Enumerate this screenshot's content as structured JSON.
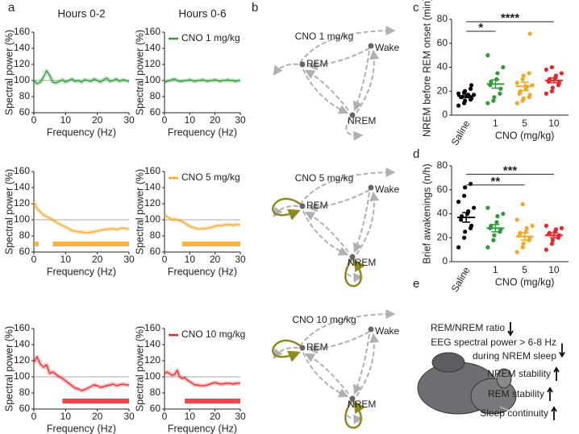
{
  "panel_labels": [
    "a",
    "b",
    "c",
    "d",
    "e"
  ],
  "chart_data": [
    {
      "type": "line",
      "title": "Hours 0-2",
      "x_label": "Frequency (Hz)",
      "y_label": "Spectral power (%)",
      "x": [
        0,
        1,
        2,
        3,
        4,
        5,
        6,
        7,
        8,
        9,
        10,
        11,
        12,
        13,
        14,
        15,
        16,
        17,
        18,
        19,
        20,
        21,
        22,
        23,
        24,
        25,
        26,
        27,
        28,
        29,
        30
      ],
      "series": [
        {
          "color": "#2e9a3a",
          "values": [
            100,
            96,
            98,
            104,
            112,
            106,
            98,
            97,
            99,
            101,
            98,
            100,
            102,
            99,
            100,
            98,
            101,
            100,
            99,
            102,
            100,
            98,
            101,
            103,
            99,
            100,
            102,
            99,
            101,
            100,
            99
          ]
        }
      ],
      "xlim": [
        0,
        30
      ],
      "ylim": [
        60,
        160
      ],
      "xticks": [
        0,
        10,
        20,
        30
      ],
      "yticks": [
        60,
        80,
        100,
        120,
        140,
        160
      ],
      "reference_line": 100
    },
    {
      "type": "line",
      "title": "Hours 0-6",
      "x_label": "Frequency (Hz)",
      "y_label": "Spectral power (%)",
      "x": [
        0,
        1,
        2,
        3,
        4,
        5,
        6,
        7,
        8,
        9,
        10,
        11,
        12,
        13,
        14,
        15,
        16,
        17,
        18,
        19,
        20,
        21,
        22,
        23,
        24,
        25,
        26,
        27,
        28,
        29,
        30
      ],
      "series": [
        {
          "name": "CNO 1 mg/kg",
          "color": "#2e9a3a",
          "values": [
            98,
            99,
            100,
            101,
            102,
            100,
            99,
            99,
            100,
            100,
            101,
            100,
            99,
            100,
            100,
            101,
            100,
            99,
            100,
            100,
            101,
            100,
            99,
            100,
            100,
            101,
            100,
            100,
            99,
            100,
            100
          ]
        }
      ],
      "xlim": [
        0,
        30
      ],
      "ylim": [
        60,
        160
      ],
      "xticks": [
        0,
        10,
        20,
        30
      ],
      "yticks": [
        60,
        80,
        100,
        120,
        140,
        160
      ],
      "reference_line": 100
    },
    {
      "type": "line",
      "x_label": "Frequency (Hz)",
      "y_label": "Spectral power (%)",
      "x": [
        0,
        1,
        2,
        3,
        4,
        5,
        6,
        7,
        8,
        9,
        10,
        11,
        12,
        13,
        14,
        15,
        16,
        17,
        18,
        19,
        20,
        21,
        22,
        23,
        24,
        25,
        26,
        27,
        28,
        29,
        30
      ],
      "series": [
        {
          "color": "#f5a623",
          "values": [
            122,
            114,
            110,
            106,
            104,
            102,
            100,
            97,
            95,
            93,
            91,
            89,
            87,
            86,
            85,
            85,
            84,
            84,
            85,
            85,
            86,
            87,
            88,
            88,
            89,
            89,
            88,
            89,
            90,
            89,
            89
          ]
        }
      ],
      "xlim": [
        0,
        30
      ],
      "ylim": [
        60,
        160
      ],
      "xticks": [
        0,
        10,
        20,
        30
      ],
      "yticks": [
        60,
        80,
        100,
        120,
        140,
        160
      ],
      "reference_line": 100,
      "significance": {
        "y": 70,
        "ranges": [
          [
            0,
            1.5
          ],
          [
            6,
            30
          ]
        ]
      }
    },
    {
      "type": "line",
      "x_label": "Frequency (Hz)",
      "y_label": "Spectral power (%)",
      "x": [
        0,
        1,
        2,
        3,
        4,
        5,
        6,
        7,
        8,
        9,
        10,
        11,
        12,
        13,
        14,
        15,
        16,
        17,
        18,
        19,
        20,
        21,
        22,
        23,
        24,
        25,
        26,
        27,
        28,
        29,
        30
      ],
      "series": [
        {
          "name": "CNO 5 mg/kg",
          "color": "#f5a623",
          "values": [
            106,
            104,
            102,
            100,
            101,
            100,
            99,
            98,
            96,
            94,
            92,
            91,
            90,
            89,
            89,
            89,
            89,
            90,
            90,
            91,
            92,
            93,
            93,
            93,
            94,
            94,
            94,
            93,
            94,
            94,
            94
          ]
        }
      ],
      "xlim": [
        0,
        30
      ],
      "ylim": [
        60,
        160
      ],
      "xticks": [
        0,
        10,
        20,
        30
      ],
      "yticks": [
        60,
        80,
        100,
        120,
        140,
        160
      ],
      "reference_line": 100,
      "significance": {
        "y": 70,
        "ranges": [
          [
            7,
            30
          ]
        ]
      }
    },
    {
      "type": "line",
      "x_label": "Frequency (Hz)",
      "y_label": "Spectral power (%)",
      "x": [
        0,
        1,
        2,
        3,
        4,
        5,
        6,
        7,
        8,
        9,
        10,
        11,
        12,
        13,
        14,
        15,
        16,
        17,
        18,
        19,
        20,
        21,
        22,
        23,
        24,
        25,
        26,
        27,
        28,
        29,
        30
      ],
      "series": [
        {
          "color": "#e8262b",
          "values": [
            118,
            125,
            116,
            112,
            115,
            104,
            106,
            103,
            100,
            98,
            95,
            92,
            89,
            86,
            85,
            83,
            84,
            86,
            88,
            90,
            89,
            87,
            88,
            89,
            90,
            91,
            89,
            90,
            91,
            90,
            90
          ]
        }
      ],
      "xlim": [
        0,
        30
      ],
      "ylim": [
        60,
        160
      ],
      "xticks": [
        0,
        10,
        20,
        30
      ],
      "yticks": [
        60,
        80,
        100,
        120,
        140,
        160
      ],
      "reference_line": 100,
      "significance": {
        "y": 70,
        "ranges": [
          [
            9,
            30
          ]
        ]
      }
    },
    {
      "type": "line",
      "x_label": "Frequency (Hz)",
      "y_label": "Spectral power (%)",
      "x": [
        0,
        1,
        2,
        3,
        4,
        5,
        6,
        7,
        8,
        9,
        10,
        11,
        12,
        13,
        14,
        15,
        16,
        17,
        18,
        19,
        20,
        21,
        22,
        23,
        24,
        25,
        26,
        27,
        28,
        29,
        30
      ],
      "series": [
        {
          "name": "CNO 10 mg/kg",
          "color": "#e8262b",
          "values": [
            104,
            106,
            104,
            102,
            103,
            108,
            100,
            98,
            99,
            96,
            94,
            92,
            90,
            90,
            89,
            89,
            89,
            90,
            91,
            92,
            93,
            92,
            91,
            91,
            92,
            92,
            92,
            91,
            92,
            92,
            92
          ]
        }
      ],
      "xlim": [
        0,
        30
      ],
      "ylim": [
        60,
        160
      ],
      "xticks": [
        0,
        10,
        20,
        30
      ],
      "yticks": [
        60,
        80,
        100,
        120,
        140,
        160
      ],
      "reference_line": 100,
      "significance": {
        "y": 70,
        "ranges": [
          [
            8,
            30
          ]
        ]
      }
    },
    {
      "type": "dot",
      "y_label": "NREM before REM onset (min)",
      "x_label": "CNO (mg/kg)",
      "categories": [
        "Saline",
        "1",
        "5",
        "10"
      ],
      "ylim": [
        0,
        80
      ],
      "yticks": [
        0,
        20,
        40,
        60,
        80
      ],
      "groups": [
        {
          "color": "#000000",
          "values": [
            8,
            10,
            12,
            13,
            14,
            15,
            15,
            16,
            17,
            17,
            18,
            19,
            20,
            22,
            25
          ],
          "mean": 16,
          "sem": 1.5
        },
        {
          "color": "#2e9a3a",
          "values": [
            10,
            12,
            15,
            18,
            22,
            25,
            28,
            30,
            35,
            40,
            50
          ],
          "mean": 26,
          "sem": 3.5
        },
        {
          "color": "#f5a623",
          "values": [
            10,
            12,
            14,
            15,
            17,
            18,
            20,
            22,
            24,
            25,
            27,
            30,
            33,
            35,
            68
          ],
          "mean": 24,
          "sem": 3.5
        },
        {
          "color": "#e8262b",
          "values": [
            18,
            20,
            23,
            25,
            27,
            28,
            30,
            31,
            33,
            35,
            38,
            40
          ],
          "mean": 29,
          "sem": 2
        }
      ],
      "brackets": [
        {
          "label": "*",
          "between": [
            "Saline",
            "1"
          ],
          "y": 70
        },
        {
          "label": "****",
          "between": [
            "Saline",
            "10"
          ],
          "y": 78
        }
      ]
    },
    {
      "type": "dot",
      "y_label": "Brief awakenings (n/h)",
      "x_label": "CNO (mg/kg)",
      "categories": [
        "Saline",
        "1",
        "5",
        "10"
      ],
      "ylim": [
        0,
        80
      ],
      "yticks": [
        0,
        20,
        40,
        60,
        80
      ],
      "groups": [
        {
          "color": "#000000",
          "values": [
            12,
            20,
            25,
            28,
            30,
            35,
            38,
            40,
            42,
            45,
            50,
            55,
            62,
            65
          ],
          "mean": 37,
          "sem": 4
        },
        {
          "color": "#2e9a3a",
          "values": [
            12,
            18,
            22,
            25,
            27,
            28,
            30,
            33,
            38,
            40,
            45
          ],
          "mean": 28,
          "sem": 3
        },
        {
          "color": "#f5a623",
          "values": [
            8,
            12,
            15,
            18,
            20,
            22,
            24,
            25,
            28,
            30,
            35,
            48
          ],
          "mean": 21,
          "sem": 3
        },
        {
          "color": "#e8262b",
          "values": [
            10,
            15,
            18,
            20,
            22,
            23,
            24,
            25,
            27,
            28,
            30
          ],
          "mean": 22,
          "sem": 2
        }
      ],
      "brackets": [
        {
          "label": "**",
          "between": [
            "Saline",
            "5"
          ],
          "y": 64
        },
        {
          "label": "***",
          "between": [
            "Saline",
            "10"
          ],
          "y": 73
        }
      ]
    }
  ],
  "diagrams": [
    {
      "title": "CNO 1 mg/kg",
      "nodes": [
        "REM",
        "Wake",
        "NREM"
      ],
      "highlight_loops": false
    },
    {
      "title": "CNO 5 mg/kg",
      "nodes": [
        "REM",
        "Wake",
        "NREM"
      ],
      "highlight_loops": true
    },
    {
      "title": "CNO 10 mg/kg",
      "nodes": [
        "REM",
        "Wake",
        "NREM"
      ],
      "highlight_loops": true
    }
  ],
  "summary": {
    "items": [
      {
        "text": [
          "REM/NREM ratio"
        ],
        "direction": "down"
      },
      {
        "text": [
          "EEG spectral power > 6-8 Hz",
          "during NREM sleep"
        ],
        "direction": "down"
      },
      {
        "text": [
          "NREM stability"
        ],
        "direction": "up"
      },
      {
        "text": [
          "REM stability"
        ],
        "direction": "up"
      },
      {
        "text": [
          "Sleep continuity"
        ],
        "direction": "up"
      }
    ]
  }
}
